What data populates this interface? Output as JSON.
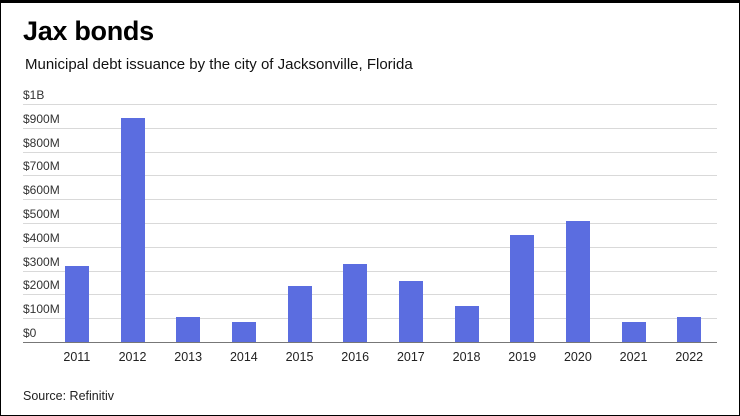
{
  "header": {
    "title": "Jax bonds",
    "subtitle": "Municipal debt issuance by the city of Jacksonville, Florida"
  },
  "footer": {
    "source": "Source: Refinitiv"
  },
  "colors": {
    "bar": "#5b6de0",
    "gridline": "#d9d9d9",
    "baseline": "#777777"
  },
  "chart_data": {
    "type": "bar",
    "title": "Jax bonds",
    "subtitle": "Municipal debt issuance by the city of Jacksonville, Florida",
    "xlabel": "",
    "ylabel": "",
    "unit": "USD millions",
    "categories": [
      "2011",
      "2012",
      "2013",
      "2014",
      "2015",
      "2016",
      "2017",
      "2018",
      "2019",
      "2020",
      "2021",
      "2022"
    ],
    "values": [
      320,
      940,
      105,
      85,
      235,
      330,
      255,
      150,
      450,
      510,
      85,
      105
    ],
    "ylim": [
      0,
      1000
    ],
    "ytick_values": [
      0,
      100,
      200,
      300,
      400,
      500,
      600,
      700,
      800,
      900,
      1000
    ],
    "ytick_labels": [
      "$0",
      "$100M",
      "$200M",
      "$300M",
      "$400M",
      "$500M",
      "$600M",
      "$700M",
      "$800M",
      "$900M",
      "$1B"
    ],
    "grid": true,
    "legend": "none",
    "bar_color": "#5b6de0",
    "source": "Source: Refinitiv"
  }
}
